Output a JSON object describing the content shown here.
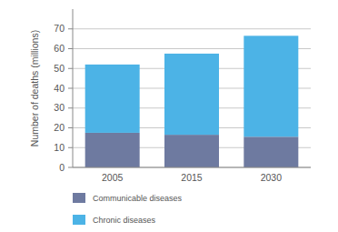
{
  "chart_data": {
    "type": "bar",
    "stacked": true,
    "y_label": "Number of deaths (millions)",
    "categories": [
      "2005",
      "2015",
      "2030"
    ],
    "series": [
      {
        "name": "Communicable diseases",
        "color": "#6e7aa0",
        "values": [
          17.5,
          16.5,
          15.5
        ]
      },
      {
        "name": "Chronic diseases",
        "color": "#4cb3e6",
        "values": [
          34.5,
          41,
          51
        ]
      }
    ],
    "ylim": [
      0,
      80
    ],
    "yticks": [
      0,
      10,
      20,
      30,
      40,
      50,
      60,
      70
    ],
    "grid": true,
    "legend": "bottom"
  }
}
